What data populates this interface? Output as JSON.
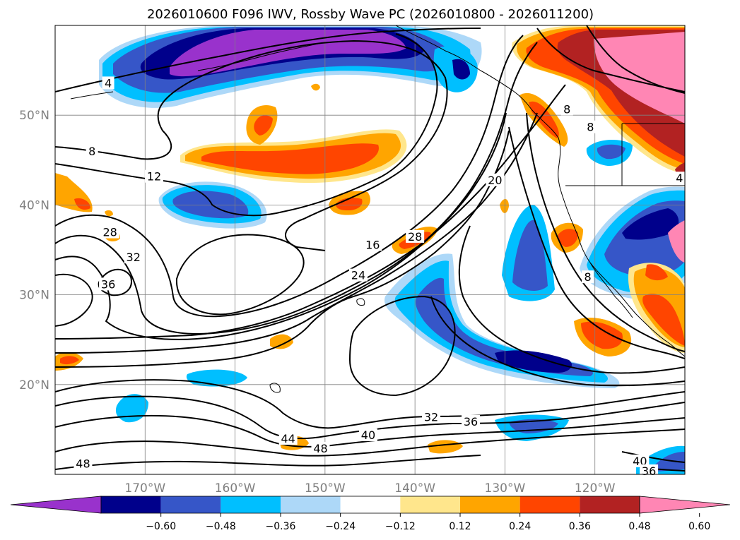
{
  "chart_data": {
    "type": "contour-map",
    "title": "2026010600 F096 IWV, Rossby Wave PC (2026010800 - 2026011200)",
    "map": {
      "lon_range": [
        -180,
        -110
      ],
      "lat_range": [
        10,
        60
      ],
      "lon_ticks": [
        -170,
        -160,
        -150,
        -140,
        -130,
        -120
      ],
      "lon_tick_labels": [
        "170°W",
        "160°W",
        "150°W",
        "140°W",
        "130°W",
        "120°W"
      ],
      "lat_ticks": [
        20,
        30,
        40,
        50
      ],
      "lat_tick_labels": [
        "20°N",
        "30°N",
        "40°N",
        "50°N"
      ],
      "grid": true
    },
    "colorbar": {
      "orientation": "horizontal",
      "extend": "both",
      "levels": [
        -0.6,
        -0.48,
        -0.36,
        -0.24,
        -0.12,
        0.12,
        0.24,
        0.36,
        0.48,
        0.6
      ],
      "tick_labels": [
        "−0.60",
        "−0.48",
        "−0.36",
        "−0.24",
        "−0.12",
        "0.12",
        "0.24",
        "0.36",
        "0.48",
        "0.60"
      ],
      "colors": [
        "#9932cc",
        "#00008b",
        "#3656c8",
        "#00bfff",
        "#add8f8",
        "#ffffff",
        "#ffe68c",
        "#ffa500",
        "#ff4500",
        "#b22222",
        "#ff86b4"
      ]
    },
    "contours": {
      "field": "IWV",
      "levels": [
        4,
        8,
        12,
        16,
        20,
        24,
        28,
        32,
        36,
        40,
        44,
        48
      ],
      "labels": [
        {
          "text": "4",
          "lon": -174.1,
          "lat": 53.6
        },
        {
          "text": "8",
          "lon": -175.9,
          "lat": 46.0
        },
        {
          "text": "12",
          "lon": -169.0,
          "lat": 43.2
        },
        {
          "text": "28",
          "lon": -173.9,
          "lat": 37.0
        },
        {
          "text": "32",
          "lon": -171.3,
          "lat": 34.2
        },
        {
          "text": "36",
          "lon": -174.1,
          "lat": 31.2
        },
        {
          "text": "16",
          "lon": -144.7,
          "lat": 35.6
        },
        {
          "text": "28",
          "lon": -140.0,
          "lat": 36.5
        },
        {
          "text": "24",
          "lon": -146.3,
          "lat": 32.2
        },
        {
          "text": "20",
          "lon": -131.1,
          "lat": 42.8
        },
        {
          "text": "8",
          "lon": -123.1,
          "lat": 50.7
        },
        {
          "text": "8",
          "lon": -120.5,
          "lat": 48.7
        },
        {
          "text": "4",
          "lon": -110.6,
          "lat": 43.0
        },
        {
          "text": "8",
          "lon": -120.8,
          "lat": 32.0
        },
        {
          "text": "32",
          "lon": -138.2,
          "lat": 16.4
        },
        {
          "text": "36",
          "lon": -133.8,
          "lat": 15.9
        },
        {
          "text": "40",
          "lon": -145.2,
          "lat": 14.4
        },
        {
          "text": "44",
          "lon": -154.1,
          "lat": 14.0
        },
        {
          "text": "48",
          "lon": -150.5,
          "lat": 12.9
        },
        {
          "text": "48",
          "lon": -176.9,
          "lat": 11.2
        },
        {
          "text": "40",
          "lon": -115.0,
          "lat": 11.5
        },
        {
          "text": "36",
          "lon": -114.0,
          "lat": 10.4
        }
      ]
    },
    "shading": {
      "field": "Rossby Wave PC",
      "regions": [
        {
          "level": -0.6,
          "desc": "Gulf of Alaska / Aleutians maximum near 160°W, 57°N"
        },
        {
          "level": -0.36,
          "desc": "North Pacific trough 165°W-158°W, 40°N"
        },
        {
          "level": -0.48,
          "desc": "Subtropical trough 130°W-122°W, 24°N"
        },
        {
          "level": -0.48,
          "desc": "Southwest US / Baja 120°W-113°W, 37°N"
        },
        {
          "level": 0.48,
          "desc": "Northwest Canada ridge 125°W-110°W, 55°N"
        },
        {
          "level": 0.36,
          "desc": "Mid-Pacific band 160°W-143°W, 45°N"
        },
        {
          "level": 0.36,
          "desc": "Mexico 118°W-110°W, 27°N"
        },
        {
          "level": 0.24,
          "desc": "Scattered positive features near Hawaii and eastern Pacific"
        }
      ]
    }
  }
}
